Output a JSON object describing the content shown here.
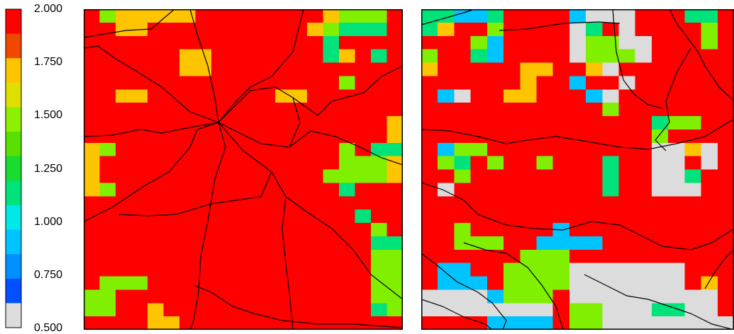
{
  "legend": {
    "labels": [
      "2.000",
      "1.750",
      "1.500",
      "1.250",
      "1.000",
      "0.750",
      "0.500"
    ],
    "range": [
      0.5,
      2.0
    ],
    "bins": [
      {
        "value": "2.000",
        "color": "#ff0000"
      },
      {
        "value": "1.875",
        "color": "#f04800"
      },
      {
        "value": "1.750",
        "color": "#ffc400"
      },
      {
        "value": "1.625",
        "color": "#e0e000"
      },
      {
        "value": "1.500",
        "color": "#8cf000"
      },
      {
        "value": "1.375",
        "color": "#58e000"
      },
      {
        "value": "1.250",
        "color": "#18dc30"
      },
      {
        "value": "1.125",
        "color": "#00e27a"
      },
      {
        "value": "1.000",
        "color": "#00e8e8"
      },
      {
        "value": "0.875",
        "color": "#00c4ff"
      },
      {
        "value": "0.750",
        "color": "#0090ff"
      },
      {
        "value": "0.625",
        "color": "#0050ff"
      },
      {
        "value": "0.500",
        "color": "#dcdcdc"
      }
    ]
  },
  "palette": {
    "R": "#ff0000",
    "O": "#ffc400",
    "G": "#80f000",
    "T": "#00e27a",
    "B": "#00c4ff",
    "W": "#dcdcdc"
  },
  "maps": [
    {
      "name": "left",
      "grid": [
        "RGOOOOORRRRRRRROGGGR",
        "RROORRRRRRRRRROGTTTR",
        "RRRRRRRRRRRRRRRTRRRR",
        "RRRRRROORRRRRRRTORTR",
        "RRRRRROORRRRRRRRRRRR",
        "RRRRRRRRRRRRRRRRGRRR",
        "RROORRRRRRRROORRRRRR",
        "RRRRRRRRRRRRRRRRRRRR",
        "RRRRRRRRRRRRRRRRRRRO",
        "RRRRRRRRRRRRRRRRRRRO",
        "OGRRRRRRRRRRRRRRGRTT",
        "ORRRRRRRRRRRRRRRGGGO",
        "ORRRRRRRRRRRRRRGGGGO",
        "OGRRRRRRRRRRRRRRTRRR",
        "RRRRRRRRRRRRRRRRRRRR",
        "RRRRRRRRRRRRRRRRRTRR",
        "RRRRRRRRRRRRRRRRRRGR",
        "RRRRRRRRRRRRRRRRRRTT",
        "RRRRRRRRRRRRRRRRRRGG",
        "RRRRRRRRRRRRRRRRRRGG",
        "RGGGRRRRRRRRRRRRRRGG",
        "GGRRRRRRRRRRRRRRRRGG",
        "GGRRORRRRRRRRRRRRRTG",
        "RRRROORRRRRRRRRRRRRR"
      ]
    },
    {
      "name": "right",
      "grid": [
        "TTBBTRRRRBWWWRRRTTR",
        "TORRGRRRRWTRWRRRRGR",
        "RRRGBRRRRWGGWWRRRGR",
        "GRRTBRRRRWGGGWRRRRR",
        "ORRRRROORROWRRRRRRR",
        "RRRRRRORRBRRWRRRRRR",
        "RBWRROORRRBWRRRRRRR",
        "RRRRRRRRRRRGRRRRRRR",
        "RRRRRRRRRRRRRRTGGRR",
        "RRRRRRRRRRRRRRGRRRR",
        "RBGGRRRRRRRRRRWWOWR",
        "RGTRGRRGRRRTRRWWRWR",
        "RRGRRRRRRRRTRRWWTRR",
        "RWRRRRRRRRRTRRWWWRR",
        "RRRRRRRRRRRRRRRRRRR",
        "RRRRRRRRRRRRRRRRRRR",
        "RRGRRRRRBRRRRRRRRRR",
        "RRGGGRRBBBBRRRRRRRR",
        "RRRRRRGGGRRRRRRRRRR",
        "RBBRRGGGGWWWWWWWRRR",
        "RBBBRGGGGWWWWWWWROR",
        "WWWWBGGGRWWWWWWWWWR",
        "WWWWWWWWRGGWWWTTWWR",
        "RRRRBBBBRGGWWWWWWWW"
      ]
    }
  ]
}
